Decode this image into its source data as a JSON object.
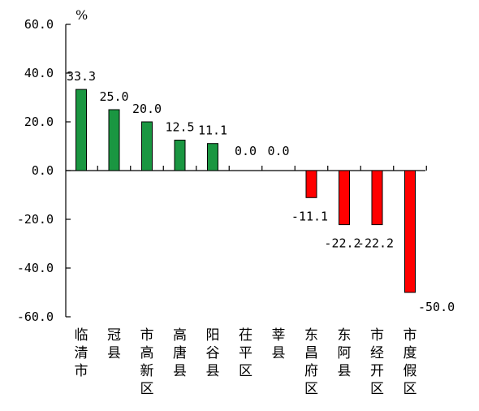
{
  "chart_data": {
    "type": "bar",
    "ylabel": "%",
    "ylim": [
      -60,
      60
    ],
    "yticks": [
      60,
      40,
      20,
      0,
      -20,
      -40,
      -60
    ],
    "ytick_labels": [
      "60.0",
      "40.0",
      "20.0",
      "0.0",
      "-20.0",
      "-40.0",
      "-60.0"
    ],
    "categories": [
      "临清市",
      "冠县",
      "市高新区",
      "高唐县",
      "阳谷县",
      "茌平区",
      "莘县",
      "东昌府区",
      "东阿县",
      "市经开区",
      "市度假区"
    ],
    "values": [
      33.3,
      25.0,
      20.0,
      12.5,
      11.1,
      0.0,
      0.0,
      -11.1,
      -22.2,
      -22.2,
      -50.0
    ],
    "value_labels": [
      "33.3",
      "25.0",
      "20.0",
      "12.5",
      "11.1",
      "0.0",
      "0.0",
      "-11.1",
      "-22.2",
      "-22.2",
      "-50.0"
    ],
    "colors": {
      "positive": "#1a9641",
      "negative": "#ff0000",
      "axis": "#000000"
    },
    "grid": false
  }
}
